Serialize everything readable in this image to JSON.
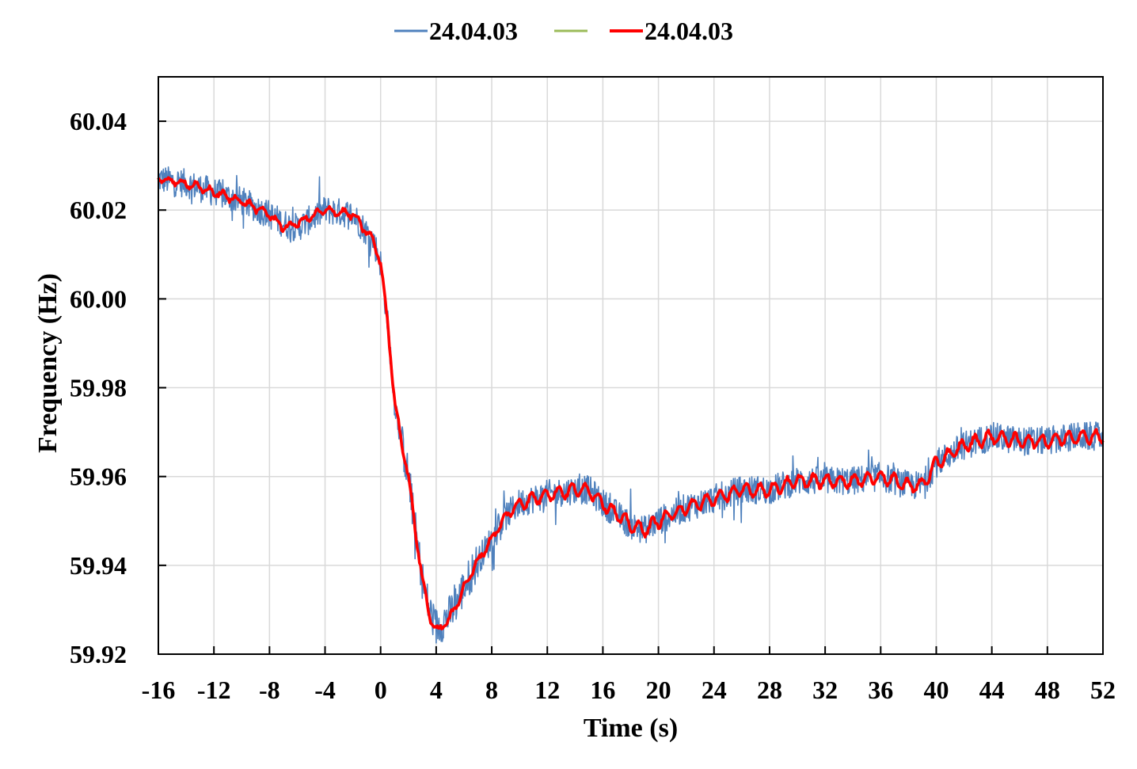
{
  "chart_data": {
    "type": "line",
    "title": "",
    "xlabel": "Time (s)",
    "ylabel": "Frequency (Hz)",
    "xlim": [
      -16,
      52
    ],
    "ylim": [
      59.92,
      60.05
    ],
    "x_ticks": [
      "-16",
      "-12",
      "-8",
      "-4",
      "0",
      "4",
      "8",
      "12",
      "16",
      "20",
      "24",
      "28",
      "32",
      "36",
      "40",
      "44",
      "48",
      "52"
    ],
    "y_ticks": [
      "59.92",
      "59.94",
      "59.96",
      "59.98",
      "60.00",
      "60.02",
      "60.04"
    ],
    "grid": true,
    "legend_position": "top-center",
    "series": [
      {
        "name": "24.04.03",
        "color": "#4f81bd",
        "style": "noisy-raw",
        "x": [
          -16,
          -14,
          -12,
          -10,
          -8,
          -7,
          -6,
          -4,
          -2,
          -1,
          -0.5,
          0,
          0.5,
          1,
          1.5,
          2,
          2.5,
          3,
          3.5,
          4,
          5,
          6,
          7,
          8,
          9,
          10,
          12,
          14,
          15,
          16,
          18,
          19,
          20,
          22,
          24,
          26,
          28,
          30,
          32,
          34,
          36,
          38,
          39,
          40,
          42,
          44,
          46,
          48,
          50,
          52
        ],
        "values": [
          60.027,
          60.026,
          60.024,
          60.022,
          60.019,
          60.017,
          60.016,
          60.02,
          60.019,
          60.015,
          60.013,
          60.008,
          59.995,
          59.977,
          59.968,
          59.96,
          59.948,
          59.937,
          59.93,
          59.926,
          59.929,
          59.935,
          59.941,
          59.946,
          59.951,
          59.954,
          59.956,
          59.957,
          59.957,
          59.954,
          59.949,
          59.948,
          59.95,
          59.953,
          59.955,
          59.957,
          59.957,
          59.959,
          59.959,
          59.959,
          59.96,
          59.958,
          59.958,
          59.963,
          59.967,
          59.969,
          59.968,
          59.968,
          59.969,
          59.969
        ]
      },
      {
        "name": "",
        "color": "#9bbb59",
        "style": "smoothed",
        "x": [],
        "values": []
      },
      {
        "name": "24.04.03",
        "color": "#ff0000",
        "style": "filtered",
        "x": [
          -16,
          -14,
          -12,
          -10,
          -8,
          -7,
          -6,
          -4,
          -2,
          -1,
          -0.5,
          0,
          0.5,
          1,
          1.5,
          2,
          2.5,
          3,
          3.5,
          4,
          5,
          6,
          7,
          8,
          9,
          10,
          12,
          14,
          15,
          16,
          18,
          19,
          20,
          22,
          24,
          26,
          28,
          30,
          32,
          34,
          36,
          38,
          39,
          40,
          42,
          44,
          46,
          48,
          50,
          52
        ],
        "values": [
          60.027,
          60.026,
          60.024,
          60.022,
          60.019,
          60.016,
          60.017,
          60.02,
          60.019,
          60.015,
          60.013,
          60.008,
          59.995,
          59.977,
          59.968,
          59.96,
          59.948,
          59.937,
          59.929,
          59.925,
          59.928,
          59.935,
          59.941,
          59.946,
          59.951,
          59.954,
          59.956,
          59.957,
          59.957,
          59.954,
          59.949,
          59.948,
          59.95,
          59.953,
          59.955,
          59.957,
          59.957,
          59.959,
          59.959,
          59.959,
          59.96,
          59.958,
          59.958,
          59.963,
          59.967,
          59.969,
          59.968,
          59.968,
          59.969,
          59.969
        ]
      }
    ]
  }
}
